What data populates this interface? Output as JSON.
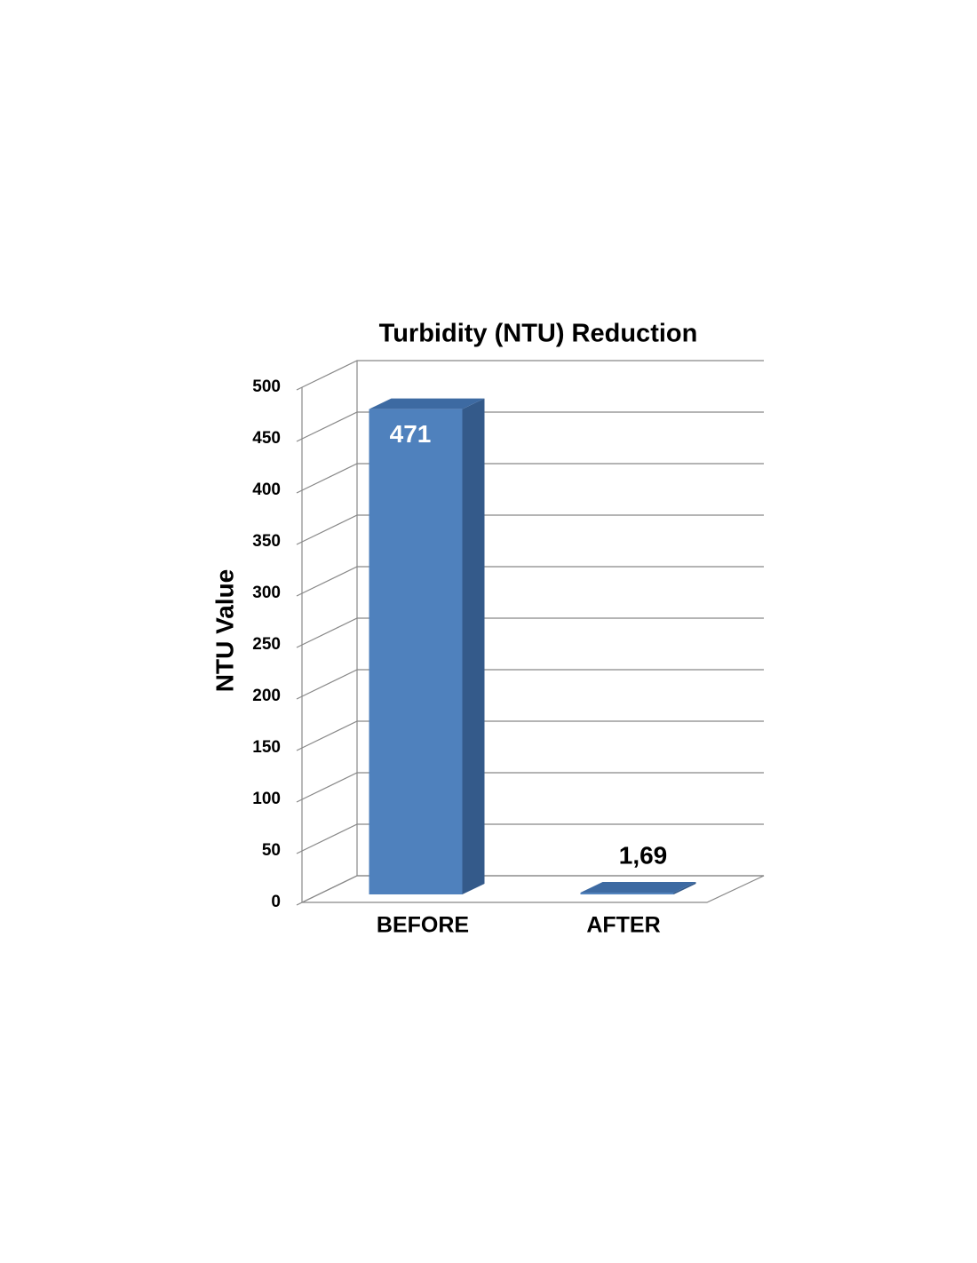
{
  "chart_data": {
    "type": "bar3d",
    "title": "Turbidity (NTU) Reduction",
    "y_label": "NTU Value",
    "categories": [
      "BEFORE",
      "AFTER"
    ],
    "values": [
      471,
      1.69
    ],
    "value_labels": [
      "471",
      "1,69"
    ],
    "color": "#4f81bd",
    "ylim": [
      0,
      500
    ],
    "yticks": [
      0,
      50,
      100,
      150,
      200,
      250,
      300,
      350,
      400,
      450,
      500
    ],
    "grid": true
  }
}
